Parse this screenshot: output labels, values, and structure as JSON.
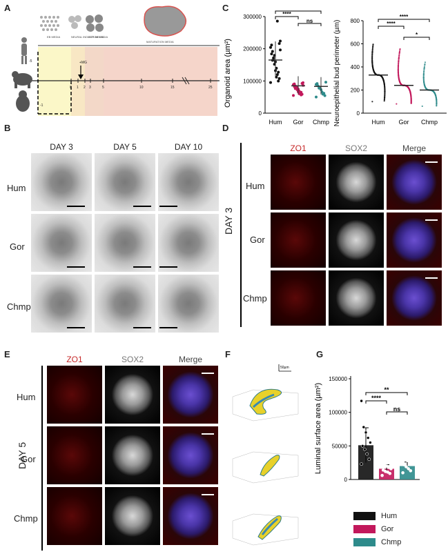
{
  "panels": {
    "A": "A",
    "B": "B",
    "C": "C",
    "D": "D",
    "E": "E",
    "F": "F",
    "G": "G"
  },
  "panelA": {
    "media": [
      "EB MEDIA",
      "NEURAL INDUCTION MEDIA",
      "EXP. MEDIA",
      "MATURATION MEDIA"
    ],
    "ticks": [
      "0",
      "1",
      "2",
      "3",
      "5",
      "10",
      "15",
      "25"
    ],
    "neg": "-5",
    "neg2": "-1",
    "mig": "+MG"
  },
  "panelB": {
    "cols": [
      "DAY 3",
      "DAY 5",
      "DAY 10"
    ],
    "rows": [
      "Hum",
      "Gor",
      "Chmp"
    ]
  },
  "panelC": {
    "chart_data": [
      {
        "type": "scatter",
        "ylabel": "Organoid area (µm²)",
        "categories": [
          "Hum",
          "Gor",
          "Chmp"
        ],
        "ylim": [
          0,
          300000
        ],
        "yticks": [
          "0",
          "100000",
          "200000",
          "300000"
        ],
        "means": [
          165000,
          85000,
          83000
        ],
        "sig": [
          {
            "pair": "Hum-Gor",
            "label": "****"
          },
          {
            "pair": "Hum-Chmp",
            "label": "****"
          },
          {
            "pair": "Gor-Chmp",
            "label": "ns"
          }
        ]
      },
      {
        "type": "scatter",
        "ylabel": "Neuroepithelial bud perimeter (µm)",
        "categories": [
          "Hum",
          "Gor",
          "Chmp"
        ],
        "ylim": [
          0,
          800
        ],
        "yticks": [
          "0",
          "200",
          "400",
          "600",
          "800"
        ],
        "means": [
          330,
          240,
          200
        ],
        "sig": [
          {
            "pair": "Hum-Gor",
            "label": "****"
          },
          {
            "pair": "Hum-Chmp",
            "label": "****"
          },
          {
            "pair": "Gor-Chmp",
            "label": "*"
          }
        ]
      }
    ]
  },
  "panelD": {
    "cols": [
      "ZO1",
      "SOX2",
      "Merge"
    ],
    "rows": [
      "Hum",
      "Gor",
      "Chmp"
    ],
    "day": "DAY 3"
  },
  "panelE": {
    "cols": [
      "ZO1",
      "SOX2",
      "Merge"
    ],
    "rows": [
      "Hum",
      "Gor",
      "Chmp"
    ],
    "day": "DAY 5"
  },
  "panelF": {
    "scale": "50µm"
  },
  "panelG": {
    "chart_data": {
      "type": "bar",
      "ylabel": "Luminal surface area (µm²)",
      "categories": [
        "Hum",
        "Gor",
        "Chmp"
      ],
      "values": [
        51000,
        16000,
        20000
      ],
      "errors": [
        26000,
        6000,
        6000
      ],
      "ylim": [
        0,
        150000
      ],
      "yticks": [
        "0",
        "50000",
        "100000",
        "150000"
      ],
      "sig": [
        {
          "pair": "Hum-Gor",
          "label": "****"
        },
        {
          "pair": "Hum-Chmp",
          "label": "**"
        },
        {
          "pair": "Gor-Chmp",
          "label": "ns"
        }
      ]
    },
    "legend": [
      {
        "name": "Hum",
        "color": "#111111"
      },
      {
        "name": "Gor",
        "color": "#c2185b"
      },
      {
        "name": "Chmp",
        "color": "#2e8b8b"
      }
    ]
  },
  "colors": {
    "hum": "#111111",
    "gor": "#c2185b",
    "chmp": "#2e8b8b",
    "zo1": "#c62828"
  }
}
